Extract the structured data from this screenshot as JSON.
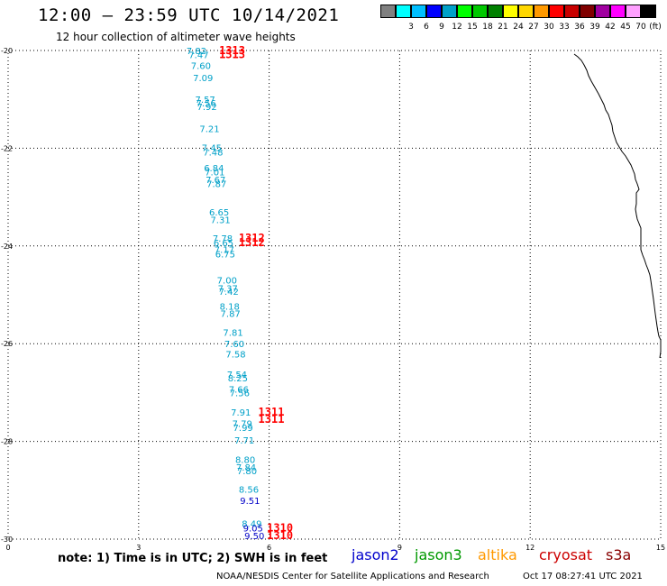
{
  "header": {
    "title": "12:00 — 23:59 UTC 10/14/2021",
    "subtitle": "12 hour collection of altimeter wave heights"
  },
  "legend": {
    "unit": "(ft)",
    "swatches": [
      {
        "color": "#808080",
        "label": ""
      },
      {
        "color": "#00ffff",
        "label": "3"
      },
      {
        "color": "#00bfff",
        "label": "6"
      },
      {
        "color": "#0000ff",
        "label": "9"
      },
      {
        "color": "#00a0c8",
        "label": "12"
      },
      {
        "color": "#00ff00",
        "label": "15"
      },
      {
        "color": "#00c800",
        "label": "18"
      },
      {
        "color": "#008000",
        "label": "21"
      },
      {
        "color": "#ffff00",
        "label": "24"
      },
      {
        "color": "#ffd700",
        "label": "27"
      },
      {
        "color": "#ff9900",
        "label": "30"
      },
      {
        "color": "#ff0000",
        "label": "33"
      },
      {
        "color": "#c80000",
        "label": "36"
      },
      {
        "color": "#800000",
        "label": "39"
      },
      {
        "color": "#a000a0",
        "label": "42"
      },
      {
        "color": "#ff00ff",
        "label": "45"
      },
      {
        "color": "#ffa0ff",
        "label": "70"
      },
      {
        "color": "#000000",
        "label": ""
      }
    ]
  },
  "map": {
    "x_ticks": [
      "0",
      "3",
      "6",
      "9",
      "12",
      "15"
    ],
    "y_ticks": [
      "-20",
      "-22",
      "-24",
      "-26",
      "-28",
      "-30"
    ],
    "colors": {
      "cyan": "#00a0c8",
      "blue": "#0000c8",
      "red": "#ff0000"
    }
  },
  "chart_data": {
    "type": "scatter",
    "xlim": [
      0,
      15
    ],
    "ylim": [
      -30,
      -20
    ],
    "swh_readings": [
      {
        "x": 4.1,
        "y": -20.0,
        "v": "7.82",
        "c": "cyan"
      },
      {
        "x": 4.15,
        "y": -20.08,
        "v": "7.47",
        "c": "cyan"
      },
      {
        "x": 4.2,
        "y": -20.3,
        "v": "7.60",
        "c": "cyan"
      },
      {
        "x": 4.25,
        "y": -20.55,
        "v": "7.09",
        "c": "cyan"
      },
      {
        "x": 4.3,
        "y": -21.0,
        "v": "7.57",
        "c": "cyan"
      },
      {
        "x": 4.32,
        "y": -21.07,
        "v": "7.56",
        "c": "cyan"
      },
      {
        "x": 4.34,
        "y": -21.14,
        "v": "7.92",
        "c": "cyan"
      },
      {
        "x": 4.4,
        "y": -21.6,
        "v": "7.21",
        "c": "cyan"
      },
      {
        "x": 4.45,
        "y": -21.98,
        "v": "7.45",
        "c": "cyan"
      },
      {
        "x": 4.48,
        "y": -22.08,
        "v": "7.48",
        "c": "cyan"
      },
      {
        "x": 4.5,
        "y": -22.4,
        "v": "6.84",
        "c": "cyan"
      },
      {
        "x": 4.52,
        "y": -22.48,
        "v": "7.01",
        "c": "cyan"
      },
      {
        "x": 4.54,
        "y": -22.64,
        "v": "7.67",
        "c": "cyan"
      },
      {
        "x": 4.56,
        "y": -22.72,
        "v": "7.87",
        "c": "cyan"
      },
      {
        "x": 4.62,
        "y": -23.3,
        "v": "6.65",
        "c": "cyan"
      },
      {
        "x": 4.65,
        "y": -23.46,
        "v": "7.31",
        "c": "cyan"
      },
      {
        "x": 4.7,
        "y": -23.84,
        "v": "7.78",
        "c": "cyan"
      },
      {
        "x": 4.72,
        "y": -23.93,
        "v": "6.65",
        "c": "cyan"
      },
      {
        "x": 4.74,
        "y": -24.07,
        "v": "7.17",
        "c": "cyan"
      },
      {
        "x": 4.76,
        "y": -24.16,
        "v": "6.75",
        "c": "cyan"
      },
      {
        "x": 4.8,
        "y": -24.7,
        "v": "7.00",
        "c": "cyan"
      },
      {
        "x": 4.82,
        "y": -24.86,
        "v": "7.37",
        "c": "cyan"
      },
      {
        "x": 4.84,
        "y": -24.93,
        "v": "7.42",
        "c": "cyan"
      },
      {
        "x": 4.86,
        "y": -25.23,
        "v": "8.18",
        "c": "cyan"
      },
      {
        "x": 4.88,
        "y": -25.38,
        "v": "7.87",
        "c": "cyan"
      },
      {
        "x": 4.94,
        "y": -25.77,
        "v": "7.81",
        "c": "cyan"
      },
      {
        "x": 4.97,
        "y": -26.0,
        "v": "7.60",
        "c": "cyan"
      },
      {
        "x": 5.0,
        "y": -26.21,
        "v": "7.58",
        "c": "cyan"
      },
      {
        "x": 5.03,
        "y": -26.62,
        "v": "7.54",
        "c": "cyan"
      },
      {
        "x": 5.05,
        "y": -26.7,
        "v": "8.25",
        "c": "cyan"
      },
      {
        "x": 5.07,
        "y": -26.93,
        "v": "7.66",
        "c": "cyan"
      },
      {
        "x": 5.09,
        "y": -27.0,
        "v": "7.56",
        "c": "cyan"
      },
      {
        "x": 5.12,
        "y": -27.4,
        "v": "7.91",
        "c": "cyan"
      },
      {
        "x": 5.15,
        "y": -27.63,
        "v": "7.79",
        "c": "cyan"
      },
      {
        "x": 5.17,
        "y": -27.71,
        "v": "7.99",
        "c": "cyan"
      },
      {
        "x": 5.2,
        "y": -27.97,
        "v": "7.71",
        "c": "cyan"
      },
      {
        "x": 5.22,
        "y": -28.37,
        "v": "8.80",
        "c": "cyan"
      },
      {
        "x": 5.24,
        "y": -28.52,
        "v": "7.84",
        "c": "cyan"
      },
      {
        "x": 5.26,
        "y": -28.6,
        "v": "7.80",
        "c": "cyan"
      },
      {
        "x": 5.3,
        "y": -28.98,
        "v": "8.56",
        "c": "cyan"
      },
      {
        "x": 5.33,
        "y": -29.21,
        "v": "9.51",
        "c": "blue"
      },
      {
        "x": 5.37,
        "y": -29.68,
        "v": "8.49",
        "c": "cyan"
      },
      {
        "x": 5.4,
        "y": -29.77,
        "v": "9.05",
        "c": "blue"
      },
      {
        "x": 5.43,
        "y": -29.93,
        "v": "9.50",
        "c": "blue"
      }
    ],
    "track_labels": [
      {
        "x": 4.85,
        "y": -20.0,
        "v": "1313",
        "c": "red"
      },
      {
        "x": 4.85,
        "y": -20.08,
        "v": "1313",
        "c": "red"
      },
      {
        "x": 5.3,
        "y": -23.84,
        "v": "1312",
        "c": "red"
      },
      {
        "x": 5.3,
        "y": -23.93,
        "v": "1312",
        "c": "red"
      },
      {
        "x": 5.75,
        "y": -27.4,
        "v": "1311",
        "c": "red"
      },
      {
        "x": 5.75,
        "y": -27.55,
        "v": "1311",
        "c": "red"
      },
      {
        "x": 5.95,
        "y": -29.77,
        "v": "1310",
        "c": "red"
      },
      {
        "x": 5.95,
        "y": -29.93,
        "v": "1310",
        "c": "red"
      }
    ]
  },
  "footer": {
    "note": "note: 1) Time is in UTC; 2) SWH is in feet",
    "satellites": [
      {
        "name": "jason2",
        "color": "#0000cc"
      },
      {
        "name": "jason3",
        "color": "#009900"
      },
      {
        "name": "altika",
        "color": "#ff9900"
      },
      {
        "name": "cryosat",
        "color": "#cc0000"
      },
      {
        "name": "s3a",
        "color": "#880000"
      }
    ],
    "credit": "NOAA/NESDIS Center for Satellite Applications and Research",
    "timestamp": "Oct 17 08:27:41 UTC 2021"
  }
}
